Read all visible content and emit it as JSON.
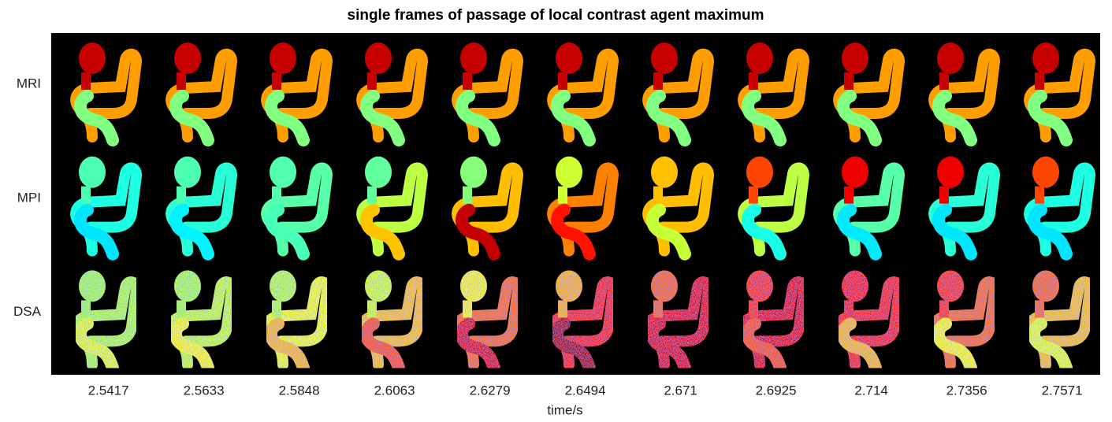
{
  "chart_data": {
    "type": "image-grid",
    "title": "single frames of passage of local contrast agent maximum",
    "x_label": "time/s",
    "categories": [
      "2.5417",
      "2.5633",
      "2.5848",
      "2.6063",
      "2.6279",
      "2.6494",
      "2.671",
      "2.6925",
      "2.714",
      "2.7356",
      "2.7571"
    ],
    "rows": [
      "MRI",
      "MPI",
      "DSA"
    ]
  }
}
